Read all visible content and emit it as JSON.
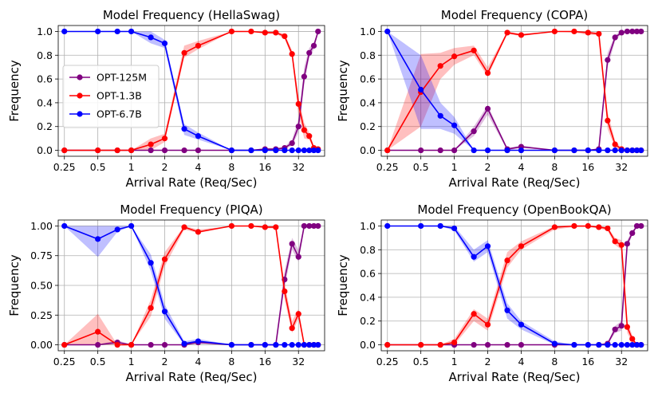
{
  "colors": {
    "OPT-125M": "#800080",
    "OPT-1.3B": "#ff0000",
    "OPT-6.7B": "#0000ff"
  },
  "chart_data": [
    {
      "type": "line",
      "title": "Model Frequency (HellaSwag)",
      "xlabel": "Arrival Rate (Req/Sec)",
      "ylabel": "Frequency",
      "xscale": "log2",
      "xlim": [
        0.22,
        55
      ],
      "ylim": [
        -0.05,
        1.05
      ],
      "xticks": [
        0.25,
        0.5,
        1,
        2,
        4,
        8,
        16,
        32
      ],
      "xtick_labels": [
        "0.25",
        "0.5",
        "1",
        "2",
        "4",
        "8",
        "16",
        "32"
      ],
      "yticks": [
        0,
        0.2,
        0.4,
        0.6,
        0.8,
        1.0
      ],
      "ytick_labels": [
        "0.0",
        "0.2",
        "0.4",
        "0.6",
        "0.8",
        "1.0"
      ],
      "legend": {
        "position": "left-center",
        "entries": [
          "OPT-125M",
          "OPT-1.3B",
          "OPT-6.7B"
        ]
      },
      "x": [
        0.25,
        0.5,
        0.75,
        1,
        1.5,
        2,
        3,
        4,
        8,
        12,
        16,
        20,
        24,
        28,
        32,
        36,
        40,
        44,
        48
      ],
      "series": [
        {
          "name": "OPT-125M",
          "values": [
            0,
            0,
            0,
            0,
            0,
            0,
            0,
            0,
            0,
            0,
            0.01,
            0.01,
            0.02,
            0.06,
            0.2,
            0.62,
            0.82,
            0.88,
            1.0
          ],
          "lower": [
            0,
            0,
            0,
            0,
            0,
            0,
            0,
            0,
            0,
            0,
            0,
            0,
            0.01,
            0.04,
            0.15,
            0.55,
            0.78,
            0.85,
            0.98
          ],
          "upper": [
            0,
            0,
            0,
            0,
            0,
            0,
            0,
            0,
            0,
            0,
            0.02,
            0.02,
            0.03,
            0.09,
            0.26,
            0.7,
            0.86,
            0.91,
            1.0
          ]
        },
        {
          "name": "OPT-1.3B",
          "values": [
            0,
            0,
            0,
            0,
            0.05,
            0.1,
            0.82,
            0.88,
            1.0,
            1.0,
            0.99,
            0.99,
            0.96,
            0.81,
            0.39,
            0.17,
            0.12,
            0.02,
            0.01
          ],
          "lower": [
            0,
            0,
            0,
            0,
            0.0,
            0.07,
            0.78,
            0.85,
            1.0,
            1.0,
            0.98,
            0.98,
            0.94,
            0.78,
            0.3,
            0.1,
            0.09,
            0.01,
            0.0
          ],
          "upper": [
            0,
            0,
            0,
            0,
            0.1,
            0.14,
            0.88,
            0.92,
            1.0,
            1.0,
            1.0,
            1.0,
            0.98,
            0.84,
            0.45,
            0.23,
            0.15,
            0.04,
            0.02
          ]
        },
        {
          "name": "OPT-6.7B",
          "values": [
            1.0,
            1.0,
            1.0,
            1.0,
            0.95,
            0.9,
            0.18,
            0.12,
            0,
            0,
            0,
            0,
            0,
            0,
            0,
            0,
            0,
            0,
            0
          ],
          "lower": [
            1.0,
            1.0,
            1.0,
            1.0,
            0.9,
            0.86,
            0.13,
            0.09,
            0,
            0,
            0,
            0,
            0,
            0,
            0,
            0,
            0,
            0,
            0
          ],
          "upper": [
            1.0,
            1.0,
            1.0,
            1.0,
            1.0,
            0.93,
            0.22,
            0.15,
            0,
            0,
            0,
            0,
            0,
            0,
            0,
            0,
            0,
            0,
            0
          ]
        }
      ]
    },
    {
      "type": "line",
      "title": "Model Frequency (COPA)",
      "xlabel": "Arrival Rate (Req/Sec)",
      "ylabel": "Frequency",
      "xscale": "log2",
      "xlim": [
        0.22,
        55
      ],
      "ylim": [
        -0.05,
        1.05
      ],
      "xticks": [
        0.25,
        0.5,
        1,
        2,
        4,
        8,
        16,
        32
      ],
      "xtick_labels": [
        "0.25",
        "0.5",
        "1",
        "2",
        "4",
        "8",
        "16",
        "32"
      ],
      "yticks": [
        0,
        0.2,
        0.4,
        0.6,
        0.8,
        1.0
      ],
      "ytick_labels": [
        "0.0",
        "0.2",
        "0.4",
        "0.6",
        "0.8",
        "1.0"
      ],
      "x": [
        0.25,
        0.5,
        0.75,
        1,
        1.5,
        2,
        3,
        4,
        8,
        12,
        16,
        20,
        24,
        28,
        32,
        36,
        40,
        44,
        48
      ],
      "series": [
        {
          "name": "OPT-125M",
          "values": [
            0,
            0,
            0,
            0,
            0.16,
            0.35,
            0.01,
            0.03,
            0,
            0,
            0,
            0.01,
            0.76,
            0.95,
            0.99,
            1.0,
            1.0,
            1.0,
            1.0
          ],
          "lower": [
            0,
            0,
            0,
            0,
            0.12,
            0.3,
            0,
            0.02,
            0,
            0,
            0,
            0,
            0.7,
            0.92,
            0.98,
            1.0,
            1.0,
            1.0,
            1.0
          ],
          "upper": [
            0,
            0,
            0,
            0,
            0.2,
            0.38,
            0.02,
            0.04,
            0,
            0,
            0,
            0.02,
            0.82,
            0.97,
            1.0,
            1.0,
            1.0,
            1.0,
            1.0
          ]
        },
        {
          "name": "OPT-1.3B",
          "values": [
            0,
            0.49,
            0.71,
            0.79,
            0.84,
            0.65,
            0.99,
            0.97,
            1.0,
            1.0,
            0.99,
            0.98,
            0.25,
            0.05,
            0.01,
            0,
            0,
            0,
            0
          ],
          "lower": [
            0,
            0.2,
            0.6,
            0.72,
            0.8,
            0.62,
            0.98,
            0.96,
            1.0,
            0.99,
            0.97,
            0.97,
            0.18,
            0.02,
            0,
            0,
            0,
            0,
            0
          ],
          "upper": [
            0,
            0.81,
            0.82,
            0.86,
            0.88,
            0.7,
            1.0,
            0.98,
            1.0,
            1.0,
            1.0,
            0.99,
            0.32,
            0.08,
            0.02,
            0,
            0,
            0,
            0
          ]
        },
        {
          "name": "OPT-6.7B",
          "values": [
            1.0,
            0.51,
            0.29,
            0.21,
            0,
            0,
            0,
            0,
            0,
            0,
            0,
            0,
            0,
            0,
            0,
            0,
            0,
            0,
            0
          ],
          "lower": [
            1.0,
            0.18,
            0.18,
            0.14,
            0,
            0,
            0,
            0,
            0,
            0,
            0,
            0,
            0,
            0,
            0,
            0,
            0,
            0,
            0
          ],
          "upper": [
            1.0,
            0.8,
            0.4,
            0.28,
            0,
            0,
            0,
            0,
            0,
            0,
            0,
            0,
            0,
            0,
            0,
            0,
            0,
            0,
            0
          ]
        }
      ]
    },
    {
      "type": "line",
      "title": "Model Frequency (PIQA)",
      "xlabel": "Arrival Rate (Req/Sec)",
      "ylabel": "Frequency",
      "xscale": "log2",
      "xlim": [
        0.22,
        55
      ],
      "ylim": [
        -0.05,
        1.05
      ],
      "xticks": [
        0.25,
        0.5,
        1,
        2,
        4,
        8,
        16,
        32
      ],
      "xtick_labels": [
        "0.25",
        "0.5",
        "1",
        "2",
        "4",
        "8",
        "16",
        "32"
      ],
      "yticks": [
        0,
        0.25,
        0.5,
        0.75,
        1.0
      ],
      "ytick_labels": [
        "0.00",
        "0.25",
        "0.50",
        "0.75",
        "1.00"
      ],
      "x": [
        0.25,
        0.5,
        0.75,
        1,
        1.5,
        2,
        3,
        4,
        8,
        12,
        16,
        20,
        24,
        28,
        32,
        36,
        40,
        44,
        48
      ],
      "series": [
        {
          "name": "OPT-125M",
          "values": [
            0,
            0,
            0.02,
            0,
            0,
            0,
            0,
            0.02,
            0,
            0,
            0,
            0,
            0.55,
            0.85,
            0.74,
            1.0,
            1.0,
            1.0,
            1.0
          ],
          "lower": [
            0,
            0,
            0.01,
            0,
            0,
            0,
            0,
            0.01,
            0,
            0,
            0,
            0,
            0.48,
            0.8,
            0.7,
            0.98,
            1.0,
            1.0,
            1.0
          ],
          "upper": [
            0,
            0,
            0.04,
            0,
            0,
            0,
            0,
            0.03,
            0,
            0,
            0,
            0,
            0.62,
            0.9,
            0.8,
            1.0,
            1.0,
            1.0,
            1.0
          ]
        },
        {
          "name": "OPT-1.3B",
          "values": [
            0,
            0.11,
            0,
            0,
            0.31,
            0.72,
            0.99,
            0.95,
            1.0,
            1.0,
            0.99,
            0.99,
            0.45,
            0.14,
            0.26,
            0,
            0,
            0,
            0
          ],
          "lower": [
            0,
            0.0,
            0,
            0,
            0.24,
            0.66,
            0.97,
            0.94,
            1.0,
            1.0,
            0.98,
            0.98,
            0.38,
            0.1,
            0.22,
            0,
            0,
            0,
            0
          ],
          "upper": [
            0,
            0.26,
            0,
            0,
            0.38,
            0.78,
            1.0,
            0.97,
            1.0,
            1.0,
            1.0,
            1.0,
            0.52,
            0.2,
            0.3,
            0.02,
            0,
            0,
            0
          ]
        },
        {
          "name": "OPT-6.7B",
          "values": [
            1.0,
            0.89,
            0.97,
            1.0,
            0.69,
            0.28,
            0.01,
            0.03,
            0,
            0,
            0,
            0,
            0,
            0,
            0,
            0,
            0,
            0,
            0
          ],
          "lower": [
            1.0,
            0.74,
            0.95,
            1.0,
            0.62,
            0.22,
            0,
            0.02,
            0,
            0,
            0,
            0,
            0,
            0,
            0,
            0,
            0,
            0,
            0
          ],
          "upper": [
            1.0,
            1.0,
            1.0,
            1.0,
            0.76,
            0.34,
            0.03,
            0.05,
            0,
            0,
            0,
            0,
            0,
            0,
            0,
            0,
            0,
            0,
            0
          ]
        }
      ]
    },
    {
      "type": "line",
      "title": "Model Frequency (OpenBookQA)",
      "xlabel": "Arrival Rate (Req/Sec)",
      "ylabel": "Frequency",
      "xscale": "log2",
      "xlim": [
        0.22,
        55
      ],
      "ylim": [
        -0.05,
        1.05
      ],
      "xticks": [
        0.25,
        0.5,
        1,
        2,
        4,
        8,
        16,
        32
      ],
      "xtick_labels": [
        "0.25",
        "0.5",
        "1",
        "2",
        "4",
        "8",
        "16",
        "32"
      ],
      "yticks": [
        0,
        0.2,
        0.4,
        0.6,
        0.8,
        1.0
      ],
      "ytick_labels": [
        "0.0",
        "0.2",
        "0.4",
        "0.6",
        "0.8",
        "1.0"
      ],
      "x": [
        0.25,
        0.5,
        0.75,
        1,
        1.5,
        2,
        3,
        4,
        8,
        12,
        16,
        20,
        24,
        28,
        32,
        36,
        40,
        44,
        48
      ],
      "series": [
        {
          "name": "OPT-125M",
          "values": [
            0,
            0,
            0,
            0,
            0,
            0,
            0,
            0,
            0,
            0,
            0,
            0,
            0.01,
            0.13,
            0.16,
            0.85,
            0.94,
            1.0,
            1.0
          ],
          "lower": [
            0,
            0,
            0,
            0,
            0,
            0,
            0,
            0,
            0,
            0,
            0,
            0,
            0,
            0.1,
            0.12,
            0.82,
            0.92,
            0.99,
            0.99
          ],
          "upper": [
            0,
            0,
            0,
            0,
            0,
            0,
            0,
            0,
            0,
            0,
            0,
            0,
            0.02,
            0.16,
            0.2,
            0.88,
            0.96,
            1.0,
            1.0
          ]
        },
        {
          "name": "OPT-1.3B",
          "values": [
            0,
            0,
            0,
            0.02,
            0.26,
            0.17,
            0.71,
            0.83,
            0.99,
            1.0,
            1.0,
            0.99,
            0.98,
            0.87,
            0.84,
            0.15,
            0.05,
            0,
            0
          ],
          "lower": [
            0,
            0,
            0,
            0.0,
            0.2,
            0.12,
            0.65,
            0.8,
            0.97,
            0.99,
            0.99,
            0.98,
            0.96,
            0.84,
            0.8,
            0.1,
            0.02,
            0,
            0
          ],
          "upper": [
            0,
            0,
            0,
            0.05,
            0.3,
            0.22,
            0.78,
            0.87,
            1.0,
            1.0,
            1.0,
            1.0,
            0.99,
            0.9,
            0.88,
            0.2,
            0.08,
            0,
            0
          ]
        },
        {
          "name": "OPT-6.7B",
          "values": [
            1.0,
            1.0,
            1.0,
            0.98,
            0.74,
            0.83,
            0.29,
            0.17,
            0.01,
            0,
            0,
            0,
            0,
            0,
            0,
            0,
            0,
            0,
            0
          ],
          "lower": [
            1.0,
            1.0,
            1.0,
            0.96,
            0.7,
            0.78,
            0.22,
            0.13,
            0.0,
            0,
            0,
            0,
            0,
            0,
            0,
            0,
            0,
            0,
            0
          ],
          "upper": [
            1.0,
            1.0,
            1.0,
            1.0,
            0.8,
            0.88,
            0.35,
            0.2,
            0.03,
            0,
            0,
            0,
            0,
            0,
            0,
            0,
            0,
            0,
            0
          ]
        }
      ]
    }
  ]
}
